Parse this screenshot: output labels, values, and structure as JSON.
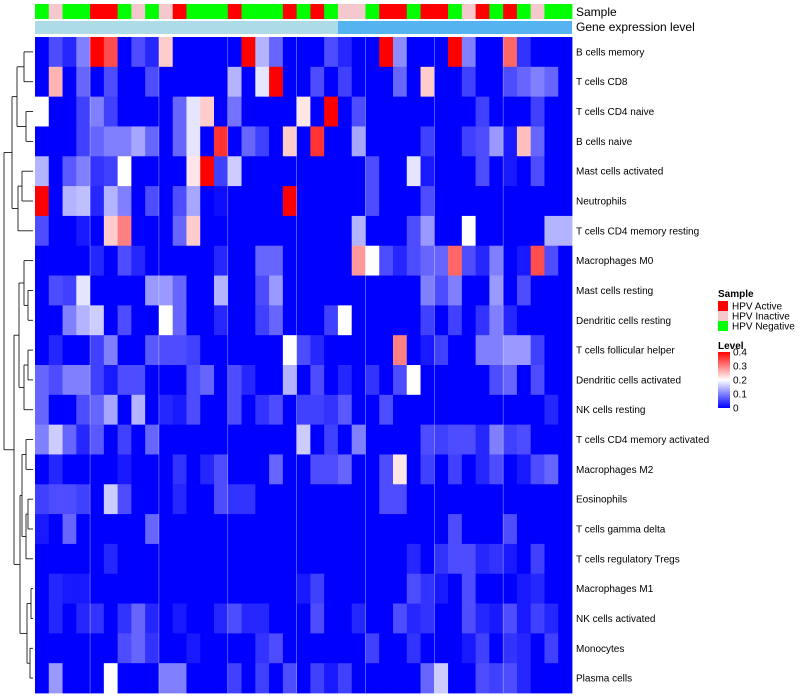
{
  "chart_data": {
    "type": "heatmap",
    "annotations": {
      "sample_label": "Sample",
      "expression_label": "Gene expression level",
      "sample_groups": [
        "Negative",
        "Inactive",
        "Negative",
        "Negative",
        "Active",
        "Active",
        "Negative",
        "Inactive",
        "Negative",
        "Inactive",
        "Active",
        "Negative",
        "Negative",
        "Negative",
        "Active",
        "Negative",
        "Negative",
        "Negative",
        "Active",
        "Negative",
        "Active",
        "Negative",
        "Inactive",
        "Inactive",
        "Negative",
        "Active",
        "Active",
        "Negative",
        "Active",
        "Active",
        "Negative",
        "Inactive",
        "Active",
        "Negative",
        "Active",
        "Negative",
        "Inactive",
        "Negative",
        "Negative"
      ],
      "expression_split": 22
    },
    "rows": [
      "B cells memory",
      "T cells CD8",
      "T cells CD4 naive",
      "B cells naive",
      "Mast cells activated",
      "Neutrophils",
      "T cells CD4 memory resting",
      "Macrophages M0",
      "Mast cells resting",
      "Dendritic cells resting",
      "T cells follicular helper",
      "Dendritic cells activated",
      "NK cells resting",
      "T cells CD4 memory activated",
      "Macrophages M2",
      "Eosinophils",
      "T cells gamma delta",
      "T cells regulatory  Tregs",
      "Macrophages M1",
      "NK cells activated",
      "Monocytes",
      "Plasma cells"
    ],
    "values": [
      [
        0,
        0.06,
        0.03,
        0.1,
        0.4,
        0.34,
        0,
        0.06,
        0.03,
        0.24,
        0,
        0,
        0,
        0,
        0,
        0.4,
        0.14,
        0.08,
        0,
        0,
        0,
        0.06,
        0.03,
        0,
        0,
        0.4,
        0.11,
        0,
        0,
        0,
        0.4,
        0.1,
        0,
        0,
        0.32,
        0.04,
        0,
        0,
        0
      ],
      [
        0,
        0.26,
        0,
        0.08,
        0,
        0.06,
        0,
        0,
        0.06,
        0,
        0,
        0,
        0,
        0,
        0.14,
        0,
        0.18,
        0.4,
        0,
        0,
        0.06,
        0,
        0.05,
        0,
        0,
        0,
        0.08,
        0,
        0.24,
        0,
        0,
        0.05,
        0,
        0,
        0.06,
        0.08,
        0.1,
        0.08,
        0
      ],
      [
        0.2,
        0,
        0,
        0.05,
        0.1,
        0.05,
        0,
        0,
        0,
        0,
        0.08,
        0.18,
        0.24,
        0,
        0.09,
        0,
        0,
        0,
        0,
        0.22,
        0,
        0.4,
        0,
        0.06,
        0,
        0,
        0,
        0,
        0,
        0,
        0,
        0,
        0.05,
        0,
        0,
        0,
        0.05,
        0,
        0
      ],
      [
        0,
        0,
        0,
        0.05,
        0.08,
        0.1,
        0.1,
        0.13,
        0.08,
        0,
        0.08,
        0.18,
        0,
        0.36,
        0,
        0.08,
        0.05,
        0,
        0.24,
        0,
        0.36,
        0,
        0,
        0.13,
        0,
        0,
        0,
        0,
        0.05,
        0,
        0,
        0.05,
        0.06,
        0.12,
        0.02,
        0.25,
        0.08,
        0,
        0
      ],
      [
        0.14,
        0,
        0.07,
        0.1,
        0.04,
        0.05,
        0.2,
        0,
        0,
        0,
        0,
        0.22,
        0.4,
        0.05,
        0.16,
        0,
        0,
        0,
        0,
        0,
        0,
        0,
        0,
        0,
        0.06,
        0,
        0,
        0.18,
        0.02,
        0,
        0,
        0,
        0.06,
        0,
        0.02,
        0,
        0.06,
        0,
        0
      ],
      [
        0.4,
        0,
        0.14,
        0.15,
        0.03,
        0.14,
        0.1,
        0,
        0.06,
        0,
        0.06,
        0.13,
        0,
        0.01,
        0,
        0,
        0,
        0,
        0.4,
        0,
        0,
        0,
        0,
        0,
        0.06,
        0,
        0,
        0,
        0.06,
        0,
        0,
        0,
        0,
        0,
        0,
        0,
        0,
        0,
        0
      ],
      [
        0.06,
        0,
        0,
        0.02,
        0,
        0.24,
        0.3,
        0,
        0,
        0,
        0.08,
        0.24,
        0,
        0,
        0,
        0,
        0,
        0,
        0,
        0,
        0,
        0,
        0,
        0.14,
        0,
        0,
        0,
        0.06,
        0.12,
        0,
        0,
        0.2,
        0,
        0,
        0,
        0,
        0,
        0.14,
        0.14
      ],
      [
        0,
        0,
        0,
        0,
        0.03,
        0,
        0.06,
        0.03,
        0,
        0,
        0,
        0,
        0,
        0.03,
        0,
        0,
        0.08,
        0.08,
        0,
        0,
        0,
        0,
        0,
        0.28,
        0.2,
        0.06,
        0.03,
        0.06,
        0.08,
        0.08,
        0.32,
        0.06,
        0.03,
        0.1,
        0,
        0.02,
        0.34,
        0.06,
        0
      ],
      [
        0,
        0.06,
        0.05,
        0.18,
        0,
        0,
        0,
        0,
        0.12,
        0.12,
        0.08,
        0,
        0,
        0.14,
        0,
        0,
        0.06,
        0.12,
        0,
        0,
        0,
        0,
        0,
        0,
        0,
        0,
        0,
        0,
        0.1,
        0.06,
        0.1,
        0,
        0,
        0.12,
        0,
        0.06,
        0,
        0,
        0
      ],
      [
        0,
        0,
        0.1,
        0.14,
        0.16,
        0,
        0.06,
        0,
        0,
        0.2,
        0.08,
        0,
        0,
        0.03,
        0,
        0,
        0.05,
        0.08,
        0,
        0,
        0,
        0.05,
        0.2,
        0,
        0,
        0,
        0,
        0,
        0.05,
        0,
        0.05,
        0,
        0.04,
        0.1,
        0.03,
        0,
        0,
        0,
        0
      ],
      [
        0,
        0.03,
        0,
        0,
        0.05,
        0.1,
        0,
        0,
        0.07,
        0.06,
        0.06,
        0.05,
        0,
        0,
        0,
        0,
        0,
        0,
        0.2,
        0.06,
        0.03,
        0,
        0,
        0,
        0,
        0,
        0.3,
        0,
        0.02,
        0.05,
        0,
        0,
        0.1,
        0.1,
        0.12,
        0.12,
        0.05,
        0,
        0
      ],
      [
        0.08,
        0.06,
        0.1,
        0.1,
        0.05,
        0.02,
        0.06,
        0.06,
        0,
        0,
        0,
        0.06,
        0.08,
        0,
        0.06,
        0.03,
        0,
        0,
        0.14,
        0,
        0.06,
        0,
        0.03,
        0,
        0.04,
        0,
        0.06,
        0.2,
        0,
        0,
        0,
        0,
        0,
        0.06,
        0.08,
        0,
        0.06,
        0,
        0
      ],
      [
        0.08,
        0,
        0,
        0.06,
        0.08,
        0.13,
        0,
        0.14,
        0,
        0.03,
        0.02,
        0.06,
        0,
        0,
        0.06,
        0,
        0.04,
        0.06,
        0,
        0.05,
        0.05,
        0.04,
        0.07,
        0,
        0,
        0.06,
        0,
        0,
        0,
        0,
        0,
        0,
        0,
        0,
        0,
        0,
        0,
        0.03,
        0
      ],
      [
        0.1,
        0.16,
        0.08,
        0.03,
        0.07,
        0,
        0.05,
        0,
        0.08,
        0,
        0,
        0,
        0,
        0,
        0,
        0,
        0,
        0,
        0,
        0.16,
        0,
        0.05,
        0,
        0.1,
        0,
        0,
        0,
        0,
        0.06,
        0.05,
        0.06,
        0.06,
        0.03,
        0.1,
        0.05,
        0.06,
        0,
        0,
        0
      ],
      [
        0,
        0.03,
        0,
        0,
        0,
        0,
        0.02,
        0,
        0,
        0,
        0.04,
        0,
        0.03,
        0.06,
        0,
        0,
        0,
        0.08,
        0,
        0,
        0.06,
        0.06,
        0.08,
        0,
        0,
        0.06,
        0.22,
        0,
        0.05,
        0,
        0.05,
        0,
        0.03,
        0.06,
        0,
        0.02,
        0.06,
        0.08,
        0
      ],
      [
        0.05,
        0.06,
        0.06,
        0.05,
        0,
        0.16,
        0.06,
        0,
        0,
        0,
        0.03,
        0,
        0,
        0.06,
        0.04,
        0.04,
        0,
        0,
        0,
        0,
        0,
        0,
        0,
        0,
        0,
        0.06,
        0.06,
        0,
        0,
        0,
        0,
        0,
        0,
        0,
        0,
        0,
        0,
        0,
        0
      ],
      [
        0.02,
        0,
        0.08,
        0,
        0,
        0,
        0,
        0,
        0.08,
        0,
        0,
        0,
        0,
        0,
        0,
        0,
        0,
        0,
        0,
        0,
        0,
        0,
        0,
        0,
        0,
        0,
        0,
        0,
        0,
        0,
        0.06,
        0,
        0,
        0,
        0.06,
        0,
        0,
        0,
        0
      ],
      [
        0,
        0,
        0,
        0,
        0,
        0.03,
        0,
        0,
        0,
        0,
        0,
        0,
        0,
        0,
        0,
        0,
        0,
        0,
        0,
        0,
        0,
        0,
        0,
        0,
        0,
        0,
        0,
        0.03,
        0,
        0.04,
        0.06,
        0.06,
        0.03,
        0.04,
        0.02,
        0,
        0.05,
        0,
        0
      ],
      [
        0,
        0.03,
        0.02,
        0.02,
        0,
        0,
        0,
        0,
        0,
        0,
        0,
        0,
        0,
        0,
        0,
        0,
        0,
        0,
        0,
        0.02,
        0.05,
        0,
        0,
        0,
        0,
        0,
        0,
        0.06,
        0.04,
        0.02,
        0,
        0.06,
        0,
        0,
        0,
        0.02,
        0.03,
        0,
        0
      ],
      [
        0,
        0.03,
        0,
        0.03,
        0.04,
        0,
        0.04,
        0.08,
        0.03,
        0,
        0.02,
        0,
        0,
        0.03,
        0.06,
        0.03,
        0.03,
        0,
        0,
        0,
        0.06,
        0,
        0,
        0.03,
        0,
        0,
        0.06,
        0.03,
        0.04,
        0,
        0,
        0.06,
        0.03,
        0.02,
        0.06,
        0.02,
        0.05,
        0.03,
        0
      ],
      [
        0,
        0,
        0,
        0,
        0,
        0,
        0.06,
        0.08,
        0.04,
        0,
        0,
        0.02,
        0,
        0,
        0,
        0,
        0.04,
        0.06,
        0,
        0,
        0,
        0,
        0,
        0,
        0.05,
        0,
        0,
        0.04,
        0,
        0,
        0,
        0.02,
        0.05,
        0,
        0.04,
        0.03,
        0,
        0.05,
        0
      ],
      [
        0,
        0.12,
        0,
        0,
        0,
        0.2,
        0,
        0,
        0,
        0.1,
        0.1,
        0,
        0,
        0,
        0.05,
        0,
        0.05,
        0,
        0.06,
        0,
        0.05,
        0.02,
        0.05,
        0,
        0,
        0,
        0,
        0,
        0.08,
        0.16,
        0,
        0,
        0.06,
        0.05,
        0.06,
        0.03,
        0,
        0,
        0
      ]
    ],
    "legend_sample": {
      "title": "Sample",
      "items": [
        {
          "name": "HPV Active",
          "color": "#ff0000"
        },
        {
          "name": "HPV Inactive",
          "color": "#f4c8cc"
        },
        {
          "name": "HPV Negative",
          "color": "#00ff00"
        }
      ]
    },
    "legend_level": {
      "title": "Level",
      "ticks": [
        "0.4",
        "0.3",
        "0.2",
        "0.1",
        "0"
      ],
      "tick_values": [
        0.4,
        0.3,
        0.2,
        0.1,
        0
      ],
      "range": [
        0,
        0.4
      ]
    },
    "colors": {
      "low": "#0000ff",
      "mid": "#ffffff",
      "high": "#ff0000",
      "expression_a": "#addbe6",
      "expression_b": "#55b4f0",
      "separator": "#ffffff"
    }
  }
}
